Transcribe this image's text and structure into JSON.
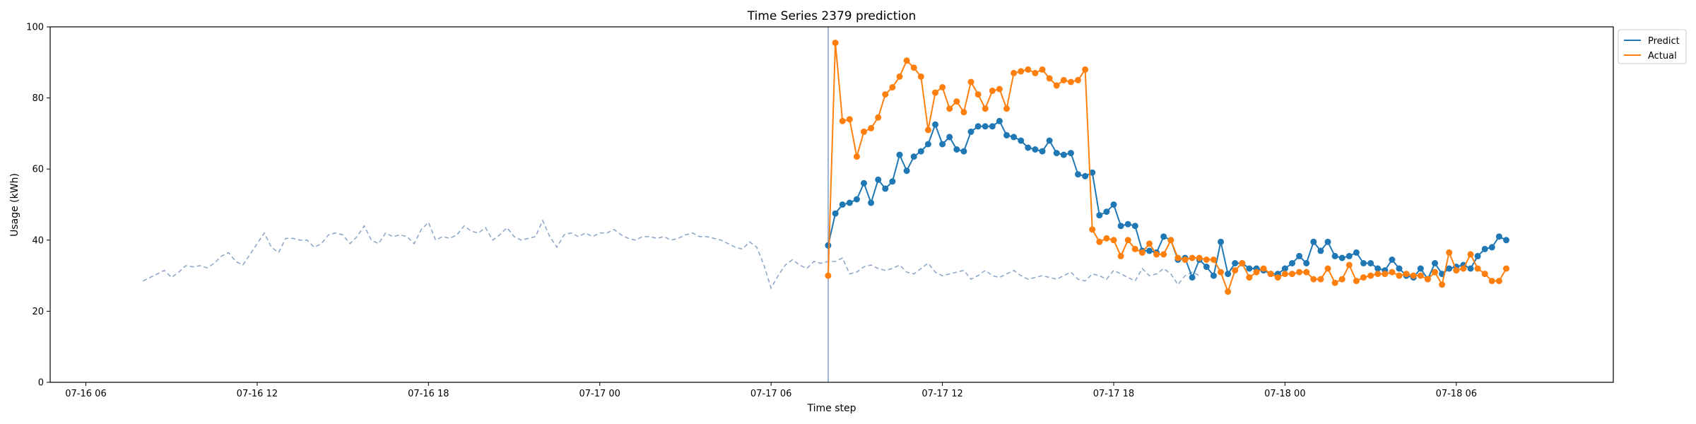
{
  "chart_data": {
    "type": "line",
    "title": "Time Series 2379 prediction",
    "xlabel": "Time step",
    "ylabel": "Usage (kWh)",
    "ylim": [
      0,
      100
    ],
    "xlim": [
      "2024-07-16 04:45",
      "2024-07-18 11:30"
    ],
    "grid": false,
    "legend_position": "outside-top-right",
    "x_ticks": [
      "07-16 06",
      "07-16 12",
      "07-16 18",
      "07-17 00",
      "07-17 06",
      "07-17 12",
      "07-17 18",
      "07-18 00",
      "07-18 06"
    ],
    "y_ticks": [
      "0",
      "20",
      "40",
      "60",
      "80",
      "100"
    ],
    "forecast_start": "2024-07-17 08:00",
    "history": {
      "style": "dashed",
      "color": "#8fa8c8",
      "start": "2024-07-16 08:00",
      "step_minutes": 15,
      "values": [
        28.5,
        29.5,
        30.5,
        31.5,
        29.5,
        31.0,
        32.8,
        32.5,
        32.8,
        32.2,
        33.5,
        35.5,
        36.5,
        34.0,
        33.0,
        36.0,
        39.0,
        42.0,
        38.0,
        36.5,
        40.5,
        40.5,
        40.0,
        40.0,
        38.0,
        39.0,
        41.5,
        42.0,
        41.5,
        39.0,
        41.0,
        44.0,
        40.0,
        39.0,
        42.0,
        41.0,
        41.5,
        41.0,
        39.0,
        43.0,
        45.0,
        40.0,
        41.0,
        40.5,
        41.5,
        44.0,
        42.5,
        42.0,
        43.5,
        40.0,
        41.5,
        43.5,
        41.0,
        40.0,
        40.5,
        41.0,
        45.5,
        41.0,
        38.0,
        41.5,
        42.0,
        41.0,
        42.0,
        41.0,
        42.0,
        42.0,
        43.0,
        41.5,
        40.5,
        40.0,
        41.0,
        41.0,
        40.5,
        41.0,
        40.0,
        40.5,
        41.5,
        42.0,
        41.0,
        41.0,
        40.5,
        40.0,
        39.0,
        38.0,
        37.5,
        39.5,
        38.0,
        33.0,
        26.5,
        30.0,
        33.0,
        34.5,
        33.0,
        32.0,
        34.0,
        33.5,
        34.0,
        34.0,
        35.0,
        30.5,
        31.0,
        32.5,
        33.0,
        32.0,
        31.5,
        32.0,
        33.0,
        31.0,
        30.5,
        32.0,
        33.5,
        31.0,
        30.0,
        30.5,
        31.0,
        31.5,
        29.0,
        30.0,
        31.5,
        30.0,
        29.5,
        30.5,
        31.5,
        30.0,
        29.0,
        29.5,
        30.0,
        29.5,
        29.0,
        30.0,
        31.0,
        29.0,
        28.5,
        30.5,
        30.0,
        29.0,
        31.5,
        30.5,
        29.5,
        28.5,
        32.0,
        30.0,
        30.5,
        32.0,
        30.5,
        27.5,
        30.0,
        31.0,
        30.0
      ]
    },
    "series": [
      {
        "name": "Predict",
        "color": "#1f77b4",
        "start": "2024-07-17 08:00",
        "step_minutes": 15,
        "values": [
          38.5,
          47.5,
          50.0,
          50.5,
          51.5,
          56.0,
          50.5,
          57.0,
          54.5,
          56.5,
          64.0,
          59.5,
          63.5,
          65.0,
          67.0,
          72.5,
          67.0,
          69.0,
          65.5,
          65.0,
          70.5,
          72.0,
          72.0,
          72.0,
          73.5,
          69.5,
          69.0,
          68.0,
          66.0,
          65.5,
          65.0,
          68.0,
          64.5,
          64.0,
          64.5,
          58.5,
          58.0,
          59.0,
          47.0,
          48.0,
          50.0,
          44.0,
          44.5,
          44.0,
          37.0,
          37.0,
          36.5,
          41.0,
          40.0,
          34.5,
          35.0,
          29.5,
          34.5,
          32.5,
          30.0,
          39.5,
          30.5,
          33.5,
          33.5,
          32.0,
          32.0,
          31.5,
          30.5,
          30.5,
          32.0,
          33.5,
          35.5,
          33.5,
          39.5,
          37.0,
          39.5,
          35.5,
          35.0,
          35.5,
          36.5,
          33.5,
          33.5,
          32.0,
          31.5,
          34.5,
          32.0,
          30.0,
          29.5,
          32.0,
          29.0,
          33.5,
          30.5,
          32.0,
          32.5,
          33.0,
          32.0,
          35.5,
          37.5,
          38.0,
          41.0,
          40.0
        ]
      },
      {
        "name": "Actual",
        "color": "#ff7f0e",
        "start": "2024-07-17 08:00",
        "step_minutes": 15,
        "values": [
          30.0,
          95.5,
          73.5,
          74.0,
          63.5,
          70.5,
          71.5,
          74.5,
          81.0,
          83.0,
          86.0,
          90.5,
          88.5,
          86.0,
          71.0,
          81.5,
          83.0,
          77.0,
          79.0,
          76.0,
          84.5,
          81.0,
          77.0,
          82.0,
          82.5,
          77.0,
          87.0,
          87.5,
          88.0,
          87.0,
          88.0,
          85.5,
          83.5,
          85.0,
          84.5,
          85.0,
          88.0,
          43.0,
          39.5,
          40.5,
          40.0,
          35.5,
          40.0,
          37.5,
          36.5,
          39.0,
          36.0,
          36.0,
          40.0,
          35.0,
          34.5,
          35.0,
          35.0,
          34.5,
          34.5,
          31.0,
          25.5,
          31.5,
          33.5,
          29.5,
          31.0,
          32.0,
          30.5,
          29.5,
          30.5,
          30.5,
          31.0,
          31.0,
          29.0,
          29.0,
          32.0,
          28.0,
          29.0,
          33.0,
          28.5,
          29.5,
          30.0,
          30.5,
          30.5,
          31.0,
          30.0,
          30.5,
          30.0,
          30.0,
          29.0,
          31.0,
          27.5,
          36.5,
          31.5,
          32.0,
          36.0,
          32.0,
          30.5,
          28.5,
          28.5,
          32.0
        ]
      }
    ]
  }
}
